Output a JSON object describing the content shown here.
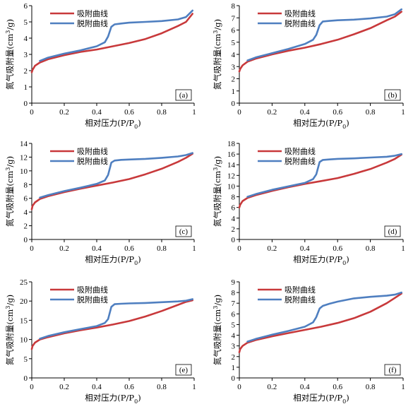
{
  "chart_data": [
    {
      "type": "line",
      "panel_label": "(a)",
      "ylabel_text": "氮气吸附量(cm",
      "ylabel_sup": "3",
      "ylabel_tail": "/g)",
      "xlabel_text": "相对压力(P/P",
      "xlabel_sub": "0",
      "xlabel_tail": ")",
      "xlim": [
        0,
        1
      ],
      "ylim": [
        0,
        6
      ],
      "xticks": [
        "0",
        "0.2",
        "0.4",
        "0.6",
        "0.8",
        "1"
      ],
      "yticks": [
        "0",
        "1",
        "2",
        "3",
        "4",
        "5",
        "6"
      ],
      "legend": "top-left",
      "series": [
        {
          "name": "吸附曲线",
          "color": "#c8393b",
          "x": [
            0,
            0.005,
            0.02,
            0.05,
            0.1,
            0.2,
            0.3,
            0.4,
            0.5,
            0.6,
            0.7,
            0.8,
            0.9,
            0.95,
            0.99
          ],
          "y": [
            1.9,
            2.05,
            2.3,
            2.5,
            2.7,
            2.95,
            3.15,
            3.3,
            3.5,
            3.7,
            3.95,
            4.3,
            4.75,
            5.0,
            5.5
          ]
        },
        {
          "name": "脱附曲线",
          "color": "#4f7fc0",
          "x": [
            0.05,
            0.1,
            0.2,
            0.3,
            0.4,
            0.45,
            0.47,
            0.49,
            0.51,
            0.55,
            0.6,
            0.7,
            0.8,
            0.9,
            0.95,
            0.99
          ],
          "y": [
            2.6,
            2.8,
            3.05,
            3.25,
            3.5,
            3.75,
            4.1,
            4.7,
            4.85,
            4.9,
            4.95,
            5.0,
            5.05,
            5.15,
            5.3,
            5.7
          ]
        }
      ]
    },
    {
      "type": "line",
      "panel_label": "(b)",
      "ylabel_text": "氮气吸附量(cm",
      "ylabel_sup": "3",
      "ylabel_tail": "/g)",
      "xlabel_text": "相对压力(P/P",
      "xlabel_sub": "0",
      "xlabel_tail": ")",
      "xlim": [
        0,
        1
      ],
      "ylim": [
        0,
        8
      ],
      "xticks": [
        "0",
        "0.2",
        "0.4",
        "0.6",
        "0.8",
        "1"
      ],
      "yticks": [
        "0",
        "1",
        "2",
        "3",
        "4",
        "5",
        "6",
        "7",
        "8"
      ],
      "legend": "top-left",
      "series": [
        {
          "name": "吸附曲线",
          "color": "#c8393b",
          "x": [
            0,
            0.005,
            0.02,
            0.05,
            0.1,
            0.2,
            0.3,
            0.4,
            0.5,
            0.6,
            0.7,
            0.8,
            0.9,
            0.95,
            0.99
          ],
          "y": [
            2.6,
            2.8,
            3.1,
            3.4,
            3.65,
            4.0,
            4.3,
            4.55,
            4.85,
            5.2,
            5.65,
            6.15,
            6.8,
            7.1,
            7.5
          ]
        },
        {
          "name": "脱附曲线",
          "color": "#4f7fc0",
          "x": [
            0.05,
            0.1,
            0.2,
            0.3,
            0.4,
            0.45,
            0.47,
            0.49,
            0.51,
            0.55,
            0.6,
            0.7,
            0.8,
            0.9,
            0.95,
            0.99
          ],
          "y": [
            3.5,
            3.75,
            4.1,
            4.45,
            4.85,
            5.2,
            5.6,
            6.4,
            6.7,
            6.75,
            6.8,
            6.85,
            6.95,
            7.1,
            7.3,
            7.7
          ]
        }
      ]
    },
    {
      "type": "line",
      "panel_label": "(c)",
      "ylabel_text": "氮气吸附量(cm",
      "ylabel_sup": "3",
      "ylabel_tail": "/g)",
      "xlabel_text": "相对压力(P/P",
      "xlabel_sub": "0",
      "xlabel_tail": ")",
      "xlim": [
        0,
        1
      ],
      "ylim": [
        0,
        14
      ],
      "xticks": [
        "0",
        "0.2",
        "0.4",
        "0.6",
        "0.8",
        "1"
      ],
      "yticks": [
        "0",
        "2",
        "4",
        "6",
        "8",
        "10",
        "12",
        "14"
      ],
      "legend": "top-left",
      "series": [
        {
          "name": "吸附曲线",
          "color": "#c8393b",
          "x": [
            0,
            0.005,
            0.02,
            0.05,
            0.1,
            0.2,
            0.3,
            0.4,
            0.5,
            0.6,
            0.7,
            0.8,
            0.9,
            0.95,
            0.99
          ],
          "y": [
            4.4,
            4.9,
            5.4,
            5.9,
            6.3,
            6.9,
            7.4,
            7.85,
            8.3,
            8.8,
            9.5,
            10.3,
            11.3,
            11.9,
            12.5
          ]
        },
        {
          "name": "脱附曲线",
          "color": "#4f7fc0",
          "x": [
            0.05,
            0.1,
            0.2,
            0.3,
            0.4,
            0.45,
            0.47,
            0.49,
            0.51,
            0.55,
            0.6,
            0.7,
            0.8,
            0.9,
            0.95,
            0.99
          ],
          "y": [
            6.1,
            6.45,
            7.05,
            7.55,
            8.1,
            8.6,
            9.4,
            11.2,
            11.5,
            11.6,
            11.65,
            11.75,
            11.9,
            12.1,
            12.3,
            12.6
          ]
        }
      ]
    },
    {
      "type": "line",
      "panel_label": "(d)",
      "ylabel_text": "氮气吸附量(cm",
      "ylabel_sup": "3",
      "ylabel_tail": "/g)",
      "xlabel_text": "相对压力(P/P",
      "xlabel_sub": "0",
      "xlabel_tail": ")",
      "xlim": [
        0,
        1
      ],
      "ylim": [
        0,
        18
      ],
      "xticks": [
        "0",
        "0.2",
        "0.4",
        "0.6",
        "0.8",
        "1"
      ],
      "yticks": [
        "0",
        "2",
        "4",
        "6",
        "8",
        "10",
        "12",
        "14",
        "16",
        "18"
      ],
      "legend": "top-left",
      "series": [
        {
          "name": "吸附曲线",
          "color": "#c8393b",
          "x": [
            0,
            0.005,
            0.02,
            0.05,
            0.1,
            0.2,
            0.3,
            0.4,
            0.5,
            0.6,
            0.7,
            0.8,
            0.9,
            0.95,
            0.99
          ],
          "y": [
            6.0,
            6.5,
            7.2,
            7.8,
            8.3,
            9.1,
            9.8,
            10.4,
            10.95,
            11.5,
            12.3,
            13.2,
            14.4,
            15.1,
            15.9
          ]
        },
        {
          "name": "脱附曲线",
          "color": "#4f7fc0",
          "x": [
            0.05,
            0.1,
            0.2,
            0.3,
            0.4,
            0.45,
            0.47,
            0.49,
            0.51,
            0.55,
            0.6,
            0.7,
            0.8,
            0.9,
            0.95,
            0.99
          ],
          "y": [
            8.0,
            8.5,
            9.3,
            9.95,
            10.6,
            11.3,
            12.2,
            14.5,
            14.9,
            15.0,
            15.1,
            15.2,
            15.35,
            15.5,
            15.7,
            16.0
          ]
        }
      ]
    },
    {
      "type": "line",
      "panel_label": "(e)",
      "ylabel_text": "氮气吸附量(cm",
      "ylabel_sup": "3",
      "ylabel_tail": "/g)",
      "xlabel_text": "相对压力(P/P",
      "xlabel_sub": "0",
      "xlabel_tail": ")",
      "xlim": [
        0,
        1
      ],
      "ylim": [
        0,
        25
      ],
      "xticks": [
        "0",
        "0.2",
        "0.4",
        "0.6",
        "0.8",
        "1"
      ],
      "yticks": [
        "0",
        "5",
        "10",
        "15",
        "20",
        "25"
      ],
      "legend": "top-left",
      "series": [
        {
          "name": "吸附曲线",
          "color": "#c8393b",
          "x": [
            0,
            0.005,
            0.02,
            0.05,
            0.1,
            0.2,
            0.3,
            0.4,
            0.5,
            0.6,
            0.7,
            0.8,
            0.9,
            0.95,
            0.99
          ],
          "y": [
            7.5,
            8.3,
            9.2,
            10.0,
            10.6,
            11.6,
            12.4,
            13.1,
            13.9,
            14.8,
            16.0,
            17.4,
            19.0,
            19.8,
            20.2
          ]
        },
        {
          "name": "脱附曲线",
          "color": "#4f7fc0",
          "x": [
            0.05,
            0.1,
            0.2,
            0.3,
            0.4,
            0.45,
            0.47,
            0.49,
            0.51,
            0.55,
            0.6,
            0.7,
            0.8,
            0.9,
            0.95,
            0.99
          ],
          "y": [
            10.2,
            10.9,
            11.9,
            12.7,
            13.5,
            14.3,
            15.3,
            18.5,
            19.2,
            19.3,
            19.4,
            19.5,
            19.7,
            19.9,
            20.1,
            20.5
          ]
        }
      ]
    },
    {
      "type": "line",
      "panel_label": "(f)",
      "ylabel_text": "氮气吸附量(cm",
      "ylabel_sup": "3",
      "ylabel_tail": "/g)",
      "xlabel_text": "相对压力(P/P",
      "xlabel_sub": "0",
      "xlabel_tail": ")",
      "xlim": [
        0,
        1
      ],
      "ylim": [
        0,
        9
      ],
      "xticks": [
        "0",
        "0.2",
        "0.4",
        "0.6",
        "0.8",
        "1"
      ],
      "yticks": [
        "0",
        "1",
        "2",
        "3",
        "4",
        "5",
        "6",
        "7",
        "8",
        "9"
      ],
      "legend": "top-left",
      "series": [
        {
          "name": "吸附曲线",
          "color": "#c8393b",
          "x": [
            0,
            0.005,
            0.02,
            0.05,
            0.1,
            0.2,
            0.3,
            0.4,
            0.5,
            0.6,
            0.7,
            0.8,
            0.9,
            0.95,
            0.99
          ],
          "y": [
            2.4,
            2.7,
            3.0,
            3.3,
            3.55,
            3.9,
            4.2,
            4.5,
            4.8,
            5.15,
            5.6,
            6.2,
            7.0,
            7.5,
            7.9
          ]
        },
        {
          "name": "脱附曲线",
          "color": "#4f7fc0",
          "x": [
            0.05,
            0.1,
            0.2,
            0.3,
            0.4,
            0.45,
            0.47,
            0.49,
            0.51,
            0.55,
            0.6,
            0.7,
            0.8,
            0.9,
            0.95,
            0.99
          ],
          "y": [
            3.4,
            3.65,
            4.05,
            4.4,
            4.8,
            5.2,
            5.7,
            6.5,
            6.75,
            6.95,
            7.15,
            7.45,
            7.6,
            7.7,
            7.8,
            8.0
          ]
        }
      ]
    }
  ]
}
